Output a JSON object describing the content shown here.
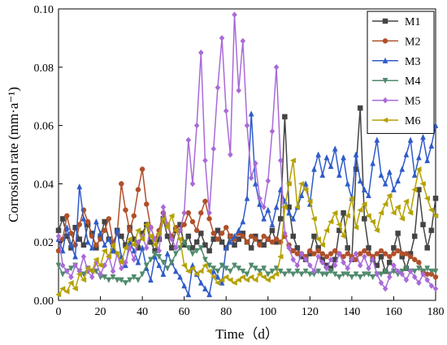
{
  "chart_data": {
    "type": "line",
    "title": "",
    "xlabel": "Time（d）",
    "ylabel": "Corrosion rate (mm·a⁻¹)",
    "xlim": [
      0,
      180
    ],
    "ylim": [
      0,
      0.1
    ],
    "xticks": [
      "0",
      "20",
      "40",
      "60",
      "80",
      "100",
      "120",
      "140",
      "160",
      "180"
    ],
    "yticks": [
      "0.00",
      "0.02",
      "0.04",
      "0.06",
      "0.08",
      "0.10"
    ],
    "grid": false,
    "legend_position": "top-right",
    "x": [
      0,
      2,
      4,
      6,
      8,
      10,
      12,
      14,
      16,
      18,
      20,
      22,
      24,
      26,
      28,
      30,
      32,
      34,
      36,
      38,
      40,
      42,
      44,
      46,
      48,
      50,
      52,
      54,
      56,
      58,
      60,
      62,
      64,
      66,
      68,
      70,
      72,
      74,
      76,
      78,
      80,
      82,
      84,
      86,
      88,
      90,
      92,
      94,
      96,
      98,
      100,
      102,
      104,
      106,
      108,
      110,
      112,
      114,
      116,
      118,
      120,
      122,
      124,
      126,
      128,
      130,
      132,
      134,
      136,
      138,
      140,
      142,
      144,
      146,
      148,
      150,
      152,
      154,
      156,
      158,
      160,
      162,
      164,
      166,
      168,
      170,
      172,
      174,
      176,
      178,
      180
    ],
    "series": [
      {
        "name": "M1",
        "color": "#444444",
        "marker": "square",
        "values": [
          0.024,
          0.028,
          0.022,
          0.018,
          0.025,
          0.021,
          0.019,
          0.026,
          0.023,
          0.018,
          0.022,
          0.027,
          0.021,
          0.017,
          0.024,
          0.022,
          0.019,
          0.025,
          0.021,
          0.018,
          0.023,
          0.026,
          0.02,
          0.017,
          0.021,
          0.028,
          0.022,
          0.018,
          0.024,
          0.026,
          0.019,
          0.022,
          0.018,
          0.02,
          0.023,
          0.019,
          0.017,
          0.021,
          0.024,
          0.02,
          0.018,
          0.022,
          0.019,
          0.021,
          0.023,
          0.02,
          0.018,
          0.022,
          0.02,
          0.019,
          0.021,
          0.024,
          0.02,
          0.028,
          0.063,
          0.032,
          0.022,
          0.018,
          0.015,
          0.014,
          0.016,
          0.022,
          0.018,
          0.014,
          0.012,
          0.011,
          0.014,
          0.024,
          0.03,
          0.018,
          0.014,
          0.045,
          0.066,
          0.028,
          0.018,
          0.014,
          0.012,
          0.015,
          0.01,
          0.013,
          0.018,
          0.023,
          0.015,
          0.011,
          0.016,
          0.022,
          0.038,
          0.026,
          0.018,
          0.024,
          0.035
        ]
      },
      {
        "name": "M2",
        "color": "#b0502a",
        "marker": "circle",
        "values": [
          0.017,
          0.021,
          0.029,
          0.023,
          0.019,
          0.026,
          0.031,
          0.027,
          0.022,
          0.019,
          0.021,
          0.024,
          0.028,
          0.02,
          0.023,
          0.04,
          0.031,
          0.024,
          0.029,
          0.038,
          0.045,
          0.033,
          0.025,
          0.021,
          0.024,
          0.03,
          0.026,
          0.022,
          0.025,
          0.024,
          0.026,
          0.03,
          0.027,
          0.024,
          0.03,
          0.034,
          0.028,
          0.023,
          0.021,
          0.023,
          0.025,
          0.022,
          0.021,
          0.023,
          0.022,
          0.02,
          0.022,
          0.021,
          0.019,
          0.022,
          0.021,
          0.02,
          0.021,
          0.02,
          0.022,
          0.019,
          0.017,
          0.016,
          0.016,
          0.015,
          0.017,
          0.016,
          0.017,
          0.016,
          0.015,
          0.016,
          0.017,
          0.016,
          0.015,
          0.016,
          0.015,
          0.014,
          0.016,
          0.017,
          0.016,
          0.015,
          0.016,
          0.017,
          0.016,
          0.015,
          0.016,
          0.017,
          0.016,
          0.016,
          0.015,
          0.014,
          0.013,
          0.01,
          0.009,
          0.009,
          0.008
        ]
      },
      {
        "name": "M3",
        "color": "#2f5cc9",
        "marker": "triangle",
        "values": [
          0.021,
          0.017,
          0.025,
          0.019,
          0.015,
          0.039,
          0.028,
          0.02,
          0.018,
          0.027,
          0.023,
          0.019,
          0.021,
          0.017,
          0.024,
          0.015,
          0.012,
          0.02,
          0.017,
          0.013,
          0.018,
          0.011,
          0.007,
          0.015,
          0.012,
          0.009,
          0.016,
          0.013,
          0.01,
          0.008,
          0.005,
          0.002,
          0.012,
          0.009,
          0.006,
          0.004,
          0.002,
          0.01,
          0.008,
          0.006,
          0.018,
          0.02,
          0.022,
          0.024,
          0.027,
          0.035,
          0.064,
          0.04,
          0.033,
          0.028,
          0.031,
          0.026,
          0.032,
          0.038,
          0.034,
          0.03,
          0.028,
          0.032,
          0.036,
          0.04,
          0.033,
          0.045,
          0.05,
          0.043,
          0.049,
          0.046,
          0.052,
          0.043,
          0.049,
          0.04,
          0.035,
          0.05,
          0.041,
          0.038,
          0.036,
          0.047,
          0.055,
          0.043,
          0.04,
          0.044,
          0.038,
          0.041,
          0.045,
          0.05,
          0.055,
          0.043,
          0.049,
          0.056,
          0.048,
          0.053,
          0.06
        ]
      },
      {
        "name": "M4",
        "color": "#4f8a6c",
        "marker": "triangle-down",
        "values": [
          0.012,
          0.009,
          0.01,
          0.011,
          0.012,
          0.01,
          0.009,
          0.011,
          0.01,
          0.01,
          0.008,
          0.008,
          0.007,
          0.008,
          0.007,
          0.007,
          0.006,
          0.007,
          0.008,
          0.007,
          0.009,
          0.012,
          0.014,
          0.016,
          0.015,
          0.013,
          0.011,
          0.013,
          0.016,
          0.018,
          0.02,
          0.018,
          0.016,
          0.017,
          0.018,
          0.014,
          0.012,
          0.011,
          0.01,
          0.012,
          0.011,
          0.01,
          0.012,
          0.011,
          0.01,
          0.009,
          0.012,
          0.011,
          0.01,
          0.011,
          0.009,
          0.01,
          0.011,
          0.01,
          0.009,
          0.01,
          0.009,
          0.01,
          0.009,
          0.01,
          0.009,
          0.009,
          0.01,
          0.009,
          0.009,
          0.01,
          0.009,
          0.008,
          0.009,
          0.009,
          0.008,
          0.009,
          0.008,
          0.009,
          0.009,
          0.008,
          0.009,
          0.009,
          0.01,
          0.009,
          0.01,
          0.009,
          0.01,
          0.011,
          0.01,
          0.01,
          0.011,
          0.01,
          0.011,
          0.01,
          0.01
        ]
      },
      {
        "name": "M5",
        "color": "#a96ad8",
        "marker": "diamond",
        "values": [
          0.022,
          0.012,
          0.01,
          0.008,
          0.012,
          0.01,
          0.015,
          0.01,
          0.008,
          0.013,
          0.009,
          0.012,
          0.015,
          0.01,
          0.016,
          0.011,
          0.013,
          0.018,
          0.014,
          0.02,
          0.022,
          0.018,
          0.025,
          0.021,
          0.017,
          0.032,
          0.026,
          0.021,
          0.018,
          0.024,
          0.03,
          0.055,
          0.04,
          0.06,
          0.085,
          0.048,
          0.03,
          0.052,
          0.073,
          0.09,
          0.065,
          0.05,
          0.098,
          0.072,
          0.089,
          0.06,
          0.042,
          0.047,
          0.035,
          0.032,
          0.041,
          0.058,
          0.08,
          0.048,
          0.023,
          0.018,
          0.014,
          0.012,
          0.016,
          0.014,
          0.012,
          0.01,
          0.015,
          0.013,
          0.011,
          0.014,
          0.012,
          0.016,
          0.013,
          0.011,
          0.014,
          0.016,
          0.012,
          0.015,
          0.011,
          0.014,
          0.009,
          0.006,
          0.004,
          0.008,
          0.012,
          0.01,
          0.009,
          0.007,
          0.01,
          0.008,
          0.006,
          0.009,
          0.007,
          0.005,
          0.004
        ]
      },
      {
        "name": "M6",
        "color": "#b5a100",
        "marker": "left-triangle",
        "values": [
          0.002,
          0.004,
          0.003,
          0.006,
          0.004,
          0.009,
          0.007,
          0.011,
          0.01,
          0.014,
          0.012,
          0.017,
          0.015,
          0.019,
          0.016,
          0.013,
          0.018,
          0.021,
          0.019,
          0.024,
          0.021,
          0.026,
          0.022,
          0.019,
          0.023,
          0.028,
          0.025,
          0.029,
          0.024,
          0.021,
          0.012,
          0.01,
          0.011,
          0.009,
          0.01,
          0.012,
          0.01,
          0.008,
          0.006,
          0.007,
          0.008,
          0.007,
          0.006,
          0.007,
          0.008,
          0.007,
          0.008,
          0.007,
          0.009,
          0.008,
          0.007,
          0.008,
          0.009,
          0.015,
          0.032,
          0.04,
          0.048,
          0.032,
          0.04,
          0.038,
          0.034,
          0.028,
          0.021,
          0.019,
          0.024,
          0.027,
          0.03,
          0.026,
          0.022,
          0.029,
          0.035,
          0.025,
          0.031,
          0.033,
          0.029,
          0.027,
          0.024,
          0.03,
          0.033,
          0.036,
          0.03,
          0.032,
          0.028,
          0.034,
          0.03,
          0.038,
          0.045,
          0.04,
          0.035,
          0.031,
          0.029
        ]
      }
    ]
  }
}
